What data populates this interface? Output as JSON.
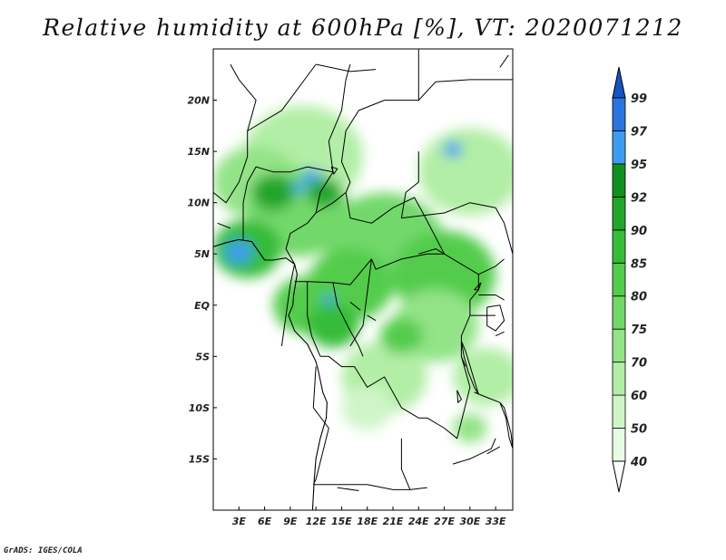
{
  "title": "Relative humidity at 600hPa [%], VT: 2020071212",
  "credit": "GrADS: IGES/COLA",
  "map": {
    "lon_range": [
      0,
      35
    ],
    "lat_range": [
      -20,
      25
    ],
    "lon_ticks": [
      "3E",
      "6E",
      "9E",
      "12E",
      "15E",
      "18E",
      "21E",
      "24E",
      "27E",
      "30E",
      "33E"
    ],
    "lat_ticks": [
      "20N",
      "15N",
      "10N",
      "5N",
      "EQ",
      "5S",
      "10S",
      "15S"
    ],
    "lon_tick_values": [
      3,
      6,
      9,
      12,
      15,
      18,
      21,
      24,
      27,
      30,
      33
    ],
    "lat_tick_values": [
      20,
      15,
      10,
      5,
      0,
      -5,
      -10,
      -15
    ]
  },
  "colorbar": {
    "levels": [
      "40",
      "50",
      "60",
      "70",
      "75",
      "80",
      "85",
      "90",
      "92",
      "95",
      "97",
      "99"
    ],
    "colors": [
      "#e8fbe4",
      "#cff5c7",
      "#b2eea6",
      "#93e387",
      "#72d86a",
      "#52cc4c",
      "#36bc37",
      "#22a52a",
      "#12901e",
      "#3e9cf0",
      "#2a74de",
      "#1654c4"
    ],
    "top_color": "#1654c4",
    "bottom_color": "#ffffff"
  },
  "humidity_blobs": [
    {
      "lon": 10.5,
      "lat": 14.5,
      "r": 7,
      "c": 2
    },
    {
      "lon": 30,
      "lat": 13,
      "r": 6,
      "c": 2
    },
    {
      "lon": 5,
      "lat": 12,
      "r": 5,
      "c": 3
    },
    {
      "lon": 10,
      "lat": 9,
      "r": 6,
      "c": 4
    },
    {
      "lon": 20,
      "lat": 6,
      "r": 7,
      "c": 4
    },
    {
      "lon": 27,
      "lat": 3,
      "r": 6,
      "c": 5
    },
    {
      "lon": 16,
      "lat": 2,
      "r": 5,
      "c": 5
    },
    {
      "lon": 4,
      "lat": 5.5,
      "r": 4,
      "c": 6
    },
    {
      "lon": 11,
      "lat": 0,
      "r": 4,
      "c": 5
    },
    {
      "lon": 14,
      "lat": -2,
      "r": 3,
      "c": 6
    },
    {
      "lon": 26,
      "lat": -2,
      "r": 5,
      "c": 3
    },
    {
      "lon": 20,
      "lat": -7,
      "r": 5,
      "c": 2
    },
    {
      "lon": 32,
      "lat": -7,
      "r": 4,
      "c": 2
    },
    {
      "lon": 7,
      "lat": 11,
      "r": 2.5,
      "c": 7
    },
    {
      "lon": 13,
      "lat": 11,
      "r": 2,
      "c": 7
    },
    {
      "lon": 3,
      "lat": 5.2,
      "r": 1.6,
      "c": 9
    },
    {
      "lon": 11.5,
      "lat": 12.6,
      "r": 1,
      "c": 9
    },
    {
      "lon": 10,
      "lat": 11.5,
      "r": 0.8,
      "c": 9
    },
    {
      "lon": 13.5,
      "lat": 0.5,
      "r": 0.7,
      "c": 9
    },
    {
      "lon": 28,
      "lat": 15.2,
      "r": 1.1,
      "c": 9
    },
    {
      "lon": 22,
      "lat": -3,
      "r": 2.5,
      "c": 5
    },
    {
      "lon": 30,
      "lat": -12,
      "r": 2,
      "c": 3
    },
    {
      "lon": 18,
      "lat": -10,
      "r": 3,
      "c": 1
    }
  ],
  "boundaries": [
    [
      [
        8,
        -4
      ],
      [
        9,
        2
      ],
      [
        9.5,
        4
      ],
      [
        8.5,
        5.5
      ],
      [
        9,
        7
      ],
      [
        11,
        8
      ],
      [
        12,
        9
      ],
      [
        12.5,
        11
      ],
      [
        14,
        13
      ],
      [
        13.5,
        16
      ],
      [
        15,
        19
      ],
      [
        15.5,
        22
      ],
      [
        16,
        23.5
      ]
    ],
    [
      [
        12,
        9
      ],
      [
        14,
        10
      ],
      [
        15.5,
        11
      ],
      [
        16,
        12
      ],
      [
        15,
        14
      ],
      [
        15.5,
        17
      ],
      [
        17,
        19
      ],
      [
        20,
        20
      ],
      [
        24,
        20
      ],
      [
        24,
        25
      ]
    ],
    [
      [
        3.5,
        6.3
      ],
      [
        3.5,
        10
      ],
      [
        4,
        12
      ],
      [
        5,
        13.5
      ],
      [
        7,
        13
      ],
      [
        9,
        13
      ],
      [
        11,
        13.5
      ],
      [
        14,
        13
      ]
    ],
    [
      [
        0,
        11
      ],
      [
        1.5,
        10
      ],
      [
        3,
        12
      ],
      [
        4,
        14.5
      ],
      [
        4,
        17
      ],
      [
        5,
        20
      ],
      [
        3,
        22
      ],
      [
        2,
        23.5
      ]
    ],
    [
      [
        4,
        17
      ],
      [
        8,
        19
      ],
      [
        12,
        23.5
      ]
    ],
    [
      [
        12,
        23.5
      ],
      [
        16,
        22.8
      ],
      [
        19,
        23
      ]
    ],
    [
      [
        15.5,
        11
      ],
      [
        16,
        8.5
      ],
      [
        18.5,
        8
      ],
      [
        21,
        9.5
      ],
      [
        23.5,
        10.5
      ],
      [
        24.5,
        9
      ],
      [
        27,
        5
      ],
      [
        25,
        5
      ],
      [
        22,
        4.5
      ],
      [
        19,
        3.5
      ],
      [
        18.5,
        4.5
      ],
      [
        16,
        2
      ],
      [
        14,
        2.2
      ],
      [
        11,
        2.3
      ],
      [
        9.5,
        2.3
      ]
    ],
    [
      [
        11,
        2.3
      ],
      [
        11,
        -1
      ],
      [
        11.5,
        -3
      ],
      [
        12.5,
        -5
      ]
    ],
    [
      [
        14,
        2.2
      ],
      [
        14.5,
        0
      ],
      [
        16,
        -2.5
      ],
      [
        17,
        -4
      ],
      [
        17.5,
        -5
      ]
    ],
    [
      [
        18.5,
        4.5
      ],
      [
        17.5,
        -2
      ],
      [
        16,
        -4
      ]
    ],
    [
      [
        12.5,
        -5
      ],
      [
        13.5,
        -5
      ],
      [
        15,
        -6
      ],
      [
        16.5,
        -6
      ],
      [
        18,
        -8
      ],
      [
        20,
        -7
      ],
      [
        22,
        -10
      ],
      [
        24,
        -11
      ],
      [
        25,
        -11
      ],
      [
        27,
        -12
      ],
      [
        28.5,
        -13
      ],
      [
        30,
        -8
      ],
      [
        29,
        -5
      ]
    ],
    [
      [
        12,
        -6
      ],
      [
        11.7,
        -10
      ],
      [
        13.5,
        -12
      ],
      [
        12,
        -17
      ],
      [
        11.7,
        -17.5
      ]
    ],
    [
      [
        11.7,
        -17.5
      ],
      [
        14,
        -17.5
      ],
      [
        18,
        -17.5
      ],
      [
        21,
        -18
      ],
      [
        23,
        -18
      ],
      [
        25,
        -17.8
      ]
    ],
    [
      [
        22,
        -13
      ],
      [
        22,
        -16
      ],
      [
        23,
        -18
      ]
    ],
    [
      [
        24,
        5
      ],
      [
        26,
        5.5
      ],
      [
        28,
        4.5
      ],
      [
        30,
        3.5
      ],
      [
        31,
        3
      ],
      [
        31,
        1.5
      ],
      [
        30,
        0.5
      ],
      [
        30,
        -1
      ],
      [
        29,
        -3
      ],
      [
        29,
        -5
      ],
      [
        29.5,
        -6
      ]
    ],
    [
      [
        24,
        8.7
      ],
      [
        27,
        9
      ],
      [
        30,
        10
      ],
      [
        33,
        9.5
      ],
      [
        34,
        8
      ],
      [
        35,
        5
      ]
    ],
    [
      [
        24,
        20
      ],
      [
        26,
        21.8
      ],
      [
        30,
        22
      ],
      [
        35,
        22
      ]
    ],
    [
      [
        24,
        15
      ],
      [
        24,
        12
      ],
      [
        22.5,
        11
      ],
      [
        22,
        8.5
      ],
      [
        24,
        8.7
      ]
    ],
    [
      [
        31,
        3
      ],
      [
        33,
        3.8
      ],
      [
        34,
        4.5
      ]
    ],
    [
      [
        31,
        1
      ],
      [
        33,
        1
      ],
      [
        34,
        0.5
      ]
    ],
    [
      [
        30,
        -1
      ],
      [
        33,
        -1
      ]
    ],
    [
      [
        33.5,
        -9.5
      ],
      [
        32,
        -9
      ],
      [
        30.5,
        -8.5
      ]
    ],
    [
      [
        33,
        -13
      ],
      [
        32.5,
        -14
      ],
      [
        30,
        -15
      ],
      [
        28,
        -15.5
      ]
    ]
  ],
  "coastline": [
    [
      0,
      5.7
    ],
    [
      1.5,
      6.1
    ],
    [
      3,
      6.4
    ],
    [
      4.5,
      6.2
    ],
    [
      6,
      4.4
    ],
    [
      7,
      4.4
    ],
    [
      8.5,
      4.6
    ],
    [
      9.5,
      4
    ],
    [
      9.8,
      3
    ],
    [
      9.6,
      2
    ],
    [
      9.4,
      1
    ],
    [
      9.3,
      0
    ],
    [
      8.8,
      -1
    ],
    [
      9.5,
      -2.5
    ],
    [
      11,
      -3.8
    ],
    [
      12,
      -5.5
    ],
    [
      12.3,
      -6.5
    ],
    [
      12.8,
      -8.5
    ],
    [
      13.3,
      -9.5
    ],
    [
      13.2,
      -11
    ],
    [
      12.5,
      -13
    ],
    [
      12,
      -15
    ],
    [
      11.8,
      -17
    ],
    [
      11.6,
      -20
    ]
  ],
  "lakes": [
    [
      [
        29,
        -3.5
      ],
      [
        29.3,
        -5
      ],
      [
        29.8,
        -6.5
      ],
      [
        30.5,
        -8
      ],
      [
        31,
        -8.7
      ],
      [
        30.4,
        -7
      ],
      [
        29.5,
        -4.5
      ],
      [
        29,
        -3.5
      ]
    ],
    [
      [
        33.5,
        -9.5
      ],
      [
        34.2,
        -11
      ],
      [
        34.6,
        -13
      ],
      [
        35,
        -14
      ],
      [
        34.8,
        -12.5
      ],
      [
        34,
        -10
      ],
      [
        33.5,
        -9.5
      ]
    ],
    [
      [
        32,
        -0.2
      ],
      [
        33.5,
        0
      ],
      [
        34,
        -1.5
      ],
      [
        33,
        -2.5
      ],
      [
        32,
        -2
      ],
      [
        32,
        -0.2
      ]
    ],
    [
      [
        30.5,
        1.5
      ],
      [
        31.3,
        2.2
      ],
      [
        31,
        1.5
      ],
      [
        30.5,
        1.5
      ]
    ],
    [
      [
        28.5,
        -8.3
      ],
      [
        29,
        -9.2
      ],
      [
        28.6,
        -9.5
      ],
      [
        28.5,
        -8.3
      ]
    ],
    [
      [
        13.8,
        13.5
      ],
      [
        14.5,
        13.3
      ],
      [
        14.1,
        12.8
      ],
      [
        13.8,
        13.5
      ]
    ],
    [
      [
        32,
        -14.5
      ],
      [
        33.5,
        -13.8
      ]
    ],
    [
      [
        33,
        -3
      ],
      [
        34,
        -2.6
      ]
    ],
    [
      [
        16,
        0.3
      ],
      [
        17.2,
        -0.5
      ]
    ],
    [
      [
        18,
        -1
      ],
      [
        19,
        -1.5
      ]
    ],
    [
      [
        0.5,
        8
      ],
      [
        2,
        7.5
      ]
    ],
    [
      [
        14.5,
        -17.8
      ],
      [
        17,
        -18.1
      ]
    ],
    [
      [
        33.5,
        23.2
      ],
      [
        34.5,
        24.4
      ]
    ]
  ]
}
